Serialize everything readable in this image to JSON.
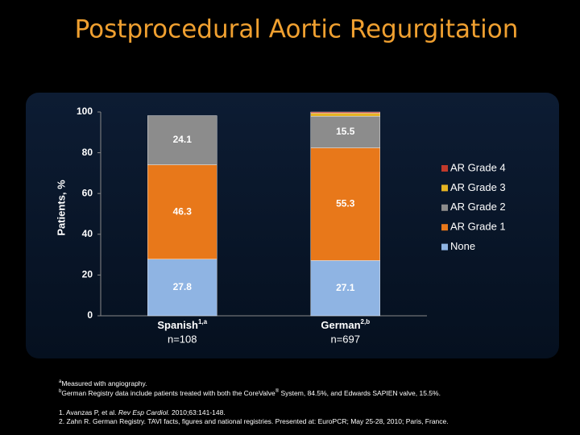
{
  "chart_data": {
    "type": "stacked_bar",
    "title": "Postprocedural Aortic Regurgitation",
    "categories": [
      "Spanish",
      "German"
    ],
    "category_superscripts": [
      "1,a",
      "2,b"
    ],
    "category_notes": [
      "n=108",
      "n=697"
    ],
    "y_label": "Patients, %",
    "ylim": [
      0,
      100
    ],
    "yticks": [
      0,
      20,
      40,
      60,
      80,
      100
    ],
    "series": [
      {
        "name": "None",
        "color": "#8fb4e3",
        "values": [
          27.8,
          27.1
        ]
      },
      {
        "name": "AR Grade 1",
        "color": "#e8781a",
        "values": [
          46.3,
          55.3
        ]
      },
      {
        "name": "AR Grade 2",
        "color": "#8c8c8c",
        "values": [
          24.1,
          15.5
        ]
      },
      {
        "name": "AR Grade 3",
        "color": "#e6b422",
        "values": [
          0,
          1.5
        ]
      },
      {
        "name": "AR Grade 4",
        "color": "#c0392b",
        "values": [
          0,
          0.6
        ]
      }
    ]
  },
  "footnotes": [
    {
      "mark": "a",
      "text": "Measured with angiography."
    },
    {
      "mark": "b",
      "text": "German Registry data include patients treated with both the CoreValve",
      "sup": "®",
      "rest": " System, 84.5%, and Edwards SAPIEN valve, 15.5%."
    }
  ],
  "references": [
    {
      "lead": "1. Avanzas P, et al. ",
      "journal": "Rev Esp Cardiol.",
      "rest": " 2010;63:141-148."
    },
    {
      "lead": "2. Zahn R. German Registry. TAVI facts, figures and national registries. Presented at: EuroPCR; May 25-28, 2010; Paris, France."
    }
  ]
}
